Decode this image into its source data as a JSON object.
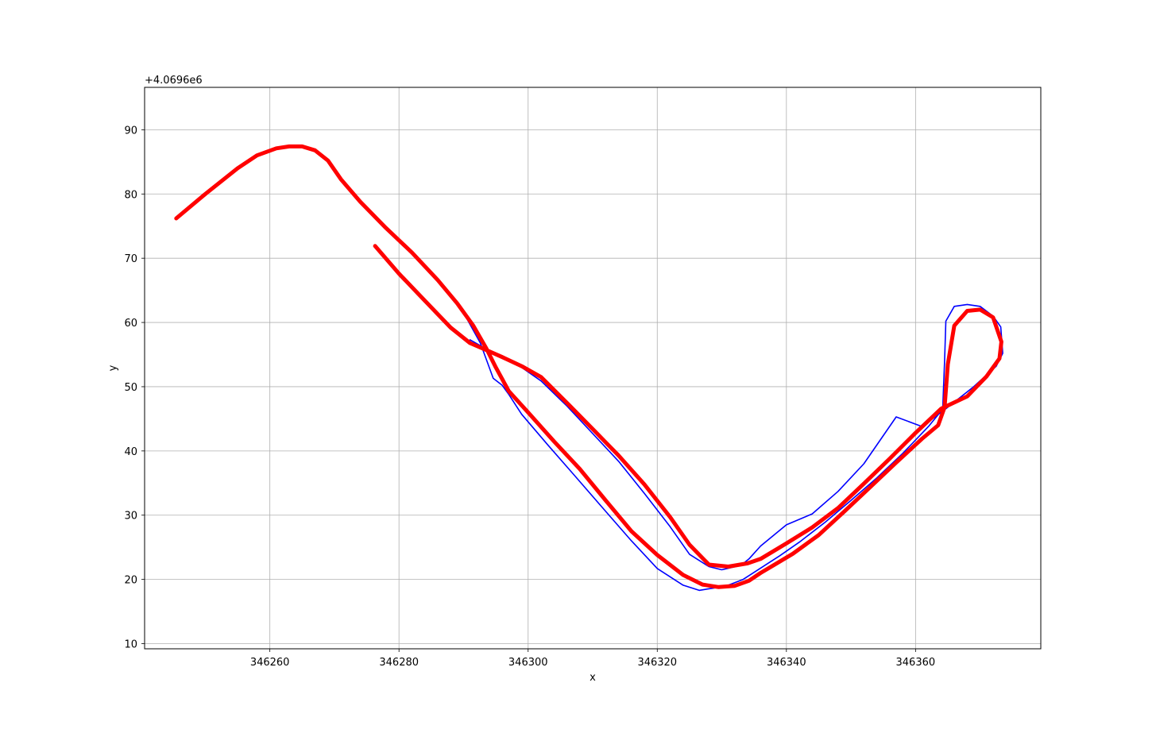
{
  "chart_data": {
    "type": "line",
    "title": "",
    "xlabel": "x",
    "ylabel": "y",
    "y_offset_label": "+4.0696e6",
    "xlim": [
      346240.6,
      346379.4
    ],
    "ylim": [
      9.2,
      96.6
    ],
    "x_ticks": [
      346260,
      346280,
      346300,
      346320,
      346340,
      346360
    ],
    "y_ticks": [
      10,
      20,
      30,
      40,
      50,
      60,
      70,
      80,
      90
    ],
    "grid": true,
    "legend": "none",
    "series": [
      {
        "color": "#0000ff",
        "style": "thin-line",
        "x": [
          346276.4,
          346280,
          346284,
          346287,
          346290,
          346292.6,
          346294.6,
          346296,
          346297,
          346299,
          346303,
          346307,
          346312,
          346316,
          346320,
          346324,
          346326.5,
          346329,
          346331,
          346333.3,
          346335,
          346337,
          346339,
          346342,
          346346,
          346350,
          346354,
          346358,
          346362,
          346364.2,
          346364.5,
          346364.7,
          346366,
          346368,
          346370,
          346372,
          346373.2,
          346373.5,
          346372.5,
          346369,
          346365,
          346361,
          346357,
          346352,
          346348,
          346344,
          346340,
          346336,
          346334.2,
          346333,
          346330,
          346328,
          346325,
          346322,
          346318,
          346314,
          346310,
          346306,
          346302,
          346299,
          346296.5,
          346294,
          346291
        ],
        "y": [
          76.2,
          72.8,
          68.7,
          65.2,
          61.5,
          56.8,
          51.3,
          50.2,
          48.8,
          45.7,
          41.0,
          36.4,
          30.6,
          26.0,
          21.7,
          19.1,
          18.3,
          18.7,
          19.1,
          20.0,
          21.1,
          22.4,
          23.7,
          25.8,
          28.9,
          32.3,
          35.8,
          39.6,
          43.8,
          46.5,
          54.0,
          60.2,
          62.5,
          62.8,
          62.5,
          61.0,
          59.3,
          55.2,
          53.2,
          50.0,
          46.8,
          43.8,
          45.3,
          38.0,
          33.7,
          30.2,
          28.5,
          25.2,
          23.2,
          22.2,
          21.5,
          22.0,
          23.9,
          28.2,
          33.4,
          38.4,
          42.7,
          47.0,
          50.9,
          53.0,
          54.4,
          55.6,
          57.3
        ]
      },
      {
        "color": "#ff0000",
        "style": "thick-line",
        "x": [
          346245.5,
          346250,
          346255,
          346258,
          346261,
          346263,
          346265,
          346267,
          346269,
          346271,
          346274,
          346278,
          346282,
          346286,
          346289,
          346291.5,
          346293.5,
          346295,
          346297,
          346300,
          346304,
          346308,
          346312,
          346316,
          346320,
          346324,
          346327,
          346329.5,
          346332,
          346334.2,
          346336,
          346338,
          346341,
          346345,
          346349,
          346353,
          346357,
          346361,
          346363.5,
          346364.5,
          346365,
          346366,
          346368,
          346370,
          346372,
          346373.3,
          346373,
          346371,
          346368,
          346364,
          346360,
          346356,
          346352,
          346348,
          346344,
          346340,
          346336,
          346334,
          346331,
          346328,
          346325,
          346322,
          346318,
          346314,
          346310,
          346306,
          346302,
          346299,
          346296,
          346294,
          346291,
          346288,
          346284,
          346280,
          346276.3
        ],
        "y": [
          76.2,
          80.0,
          84.0,
          86.0,
          87.1,
          87.4,
          87.4,
          86.8,
          85.2,
          82.3,
          78.8,
          74.7,
          70.9,
          66.6,
          63.0,
          59.5,
          56.0,
          53.0,
          49.3,
          46.0,
          41.5,
          37.2,
          32.3,
          27.5,
          23.8,
          20.7,
          19.2,
          18.8,
          19.0,
          19.8,
          21.0,
          22.2,
          24.0,
          26.9,
          30.6,
          34.4,
          38.2,
          41.9,
          44.0,
          46.8,
          53.5,
          59.5,
          61.8,
          62.0,
          60.8,
          57.0,
          54.4,
          51.6,
          48.5,
          46.6,
          42.8,
          38.8,
          34.9,
          31.1,
          28.1,
          25.6,
          23.2,
          22.5,
          22.0,
          22.3,
          25.4,
          29.7,
          34.8,
          39.3,
          43.4,
          47.5,
          51.5,
          53.2,
          54.6,
          55.5,
          56.8,
          59.2,
          63.4,
          67.6,
          71.9
        ]
      }
    ]
  }
}
